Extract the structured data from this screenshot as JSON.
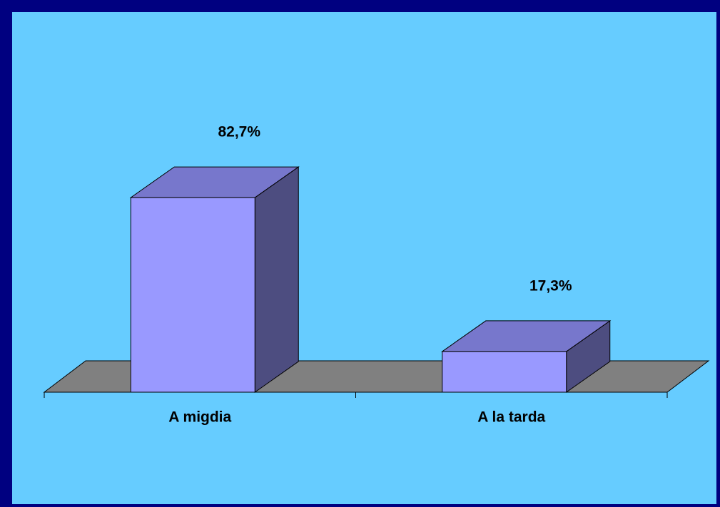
{
  "chart_data": {
    "type": "bar3d",
    "categories": [
      "A migdia",
      "A la tarda"
    ],
    "values": [
      82.7,
      17.3
    ],
    "value_labels": [
      "82,7%",
      "17,3%"
    ],
    "colors": {
      "front": "#9999ff",
      "top": "#7777cc",
      "side": "#4d4d80",
      "floor": "#808080",
      "background": "#66ccff"
    }
  }
}
